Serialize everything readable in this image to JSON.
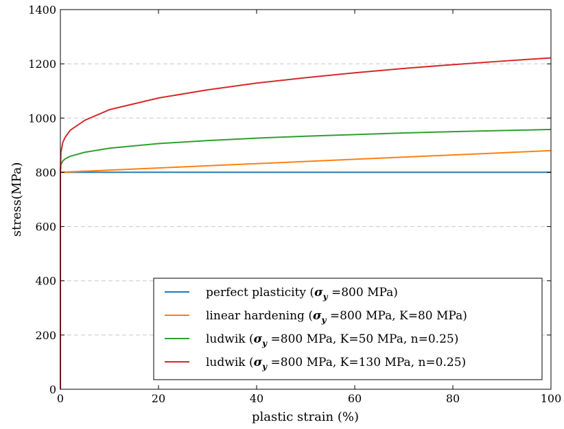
{
  "chart_data": {
    "type": "line",
    "title": "",
    "xlabel": "plastic strain (%)",
    "ylabel": "stress(MPa)",
    "xlim": [
      0,
      100
    ],
    "ylim": [
      0,
      1400
    ],
    "x_ticks": [
      "0",
      "20",
      "40",
      "60",
      "80",
      "100"
    ],
    "y_ticks": [
      "0",
      "200",
      "400",
      "600",
      "800",
      "1000",
      "1200",
      "1400"
    ],
    "grid": "horizontal dashed",
    "legend_position": "lower-right",
    "series": [
      {
        "name": "perfect plasticity (σy =800 MPa)",
        "color": "#1f77b4",
        "x": [
          0,
          0,
          10,
          20,
          30,
          40,
          50,
          60,
          70,
          80,
          90,
          100
        ],
        "y": [
          0,
          800,
          800,
          800,
          800,
          800,
          800,
          800,
          800,
          800,
          800,
          800
        ]
      },
      {
        "name": "linear hardening (σy =800 MPa, K=80 MPa)",
        "color": "#ff7f0e",
        "x": [
          0,
          0,
          10,
          20,
          30,
          40,
          50,
          60,
          70,
          80,
          90,
          100
        ],
        "y": [
          0,
          800,
          808,
          816,
          824,
          832,
          840,
          848,
          856,
          864,
          872,
          880
        ]
      },
      {
        "name": "ludwik (σy =800 MPa, K=50 MPa, n=0.25)",
        "color": "#2ca02c",
        "x": [
          0,
          0,
          0.1,
          0.5,
          1,
          2,
          5,
          10,
          20,
          30,
          40,
          50,
          60,
          70,
          80,
          90,
          100
        ],
        "y": [
          0,
          800,
          828,
          842,
          850,
          859,
          874,
          889,
          906,
          917,
          926,
          933,
          939,
          945,
          950,
          954,
          958
        ]
      },
      {
        "name": "ludwik (σy =800 MPa, K=130 MPa, n=0.25)",
        "color": "#d62728",
        "x": [
          0,
          0,
          0.1,
          0.5,
          1,
          2,
          5,
          10,
          20,
          30,
          40,
          50,
          60,
          70,
          80,
          90,
          100
        ],
        "y": [
          0,
          800,
          873,
          911,
          930,
          955,
          992,
          1031,
          1074,
          1104,
          1129,
          1149,
          1167,
          1183,
          1197,
          1210,
          1222
        ]
      }
    ]
  },
  "legend": [
    {
      "prefix": "perfect plasticity (",
      "sym": "σ",
      "sub": "y",
      "suffix": " =800 MPa)"
    },
    {
      "prefix": "linear hardening (",
      "sym": "σ",
      "sub": "y",
      "suffix": " =800 MPa, K=80 MPa)"
    },
    {
      "prefix": "ludwik (",
      "sym": "σ",
      "sub": "y",
      "suffix": " =800 MPa, K=50 MPa, n=0.25)"
    },
    {
      "prefix": "ludwik (",
      "sym": "σ",
      "sub": "y",
      "suffix": " =800 MPa, K=130 MPa, n=0.25)"
    }
  ]
}
